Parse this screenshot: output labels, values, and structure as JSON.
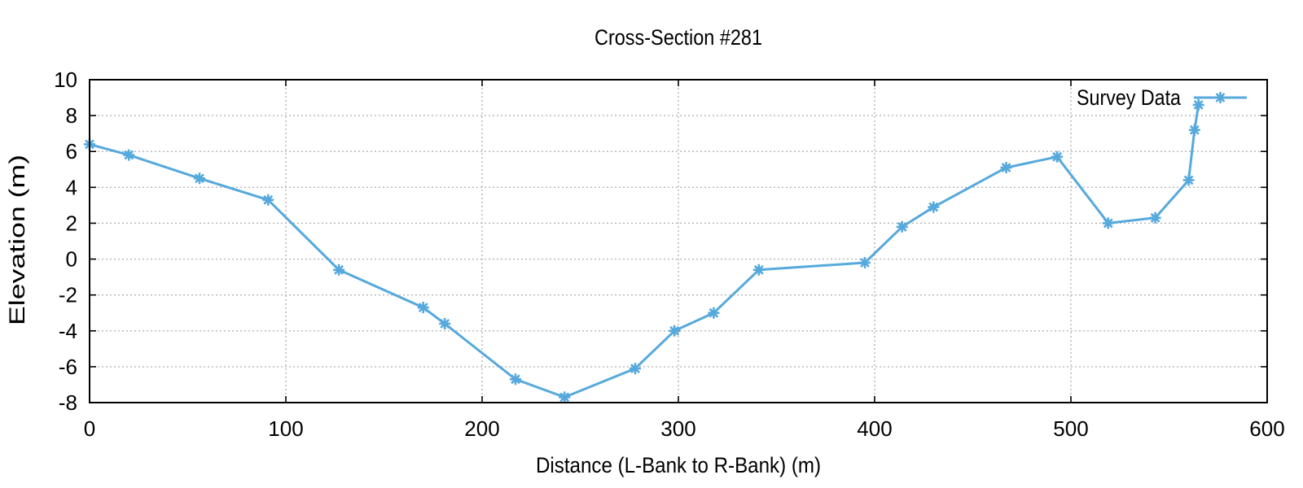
{
  "chart_data": {
    "type": "line",
    "title": "Cross-Section #281",
    "xlabel": "Distance (L-Bank to R-Bank) (m)",
    "ylabel": "Elevation (m)",
    "xlim": [
      0,
      600
    ],
    "ylim": [
      -8,
      10
    ],
    "x_ticks": [
      0,
      100,
      200,
      300,
      400,
      500,
      600
    ],
    "y_ticks": [
      -8,
      -6,
      -4,
      -2,
      0,
      2,
      4,
      6,
      8,
      10
    ],
    "grid": true,
    "legend_position": "top-right-inside",
    "series": [
      {
        "name": "Survey Data",
        "color": "#56A9DC",
        "marker": "asterisk",
        "points": [
          [
            0,
            6.4
          ],
          [
            20,
            5.8
          ],
          [
            56,
            4.5
          ],
          [
            91,
            3.3
          ],
          [
            127,
            -0.6
          ],
          [
            170,
            -2.7
          ],
          [
            181,
            -3.6
          ],
          [
            217,
            -6.7
          ],
          [
            242,
            -7.7
          ],
          [
            278,
            -6.1
          ],
          [
            298,
            -4.0
          ],
          [
            318,
            -3.0
          ],
          [
            341,
            -0.6
          ],
          [
            395,
            -0.2
          ],
          [
            414,
            1.8
          ],
          [
            430,
            2.9
          ],
          [
            467,
            5.1
          ],
          [
            493,
            5.7
          ],
          [
            519,
            2.0
          ],
          [
            543,
            2.3
          ],
          [
            560,
            4.4
          ],
          [
            563,
            7.2
          ],
          [
            565,
            8.6
          ]
        ]
      }
    ]
  },
  "colors": {
    "series_line": "#56A9DC",
    "grid": "#b5b5b5",
    "axis_border": "#000000",
    "background": "#ffffff"
  }
}
